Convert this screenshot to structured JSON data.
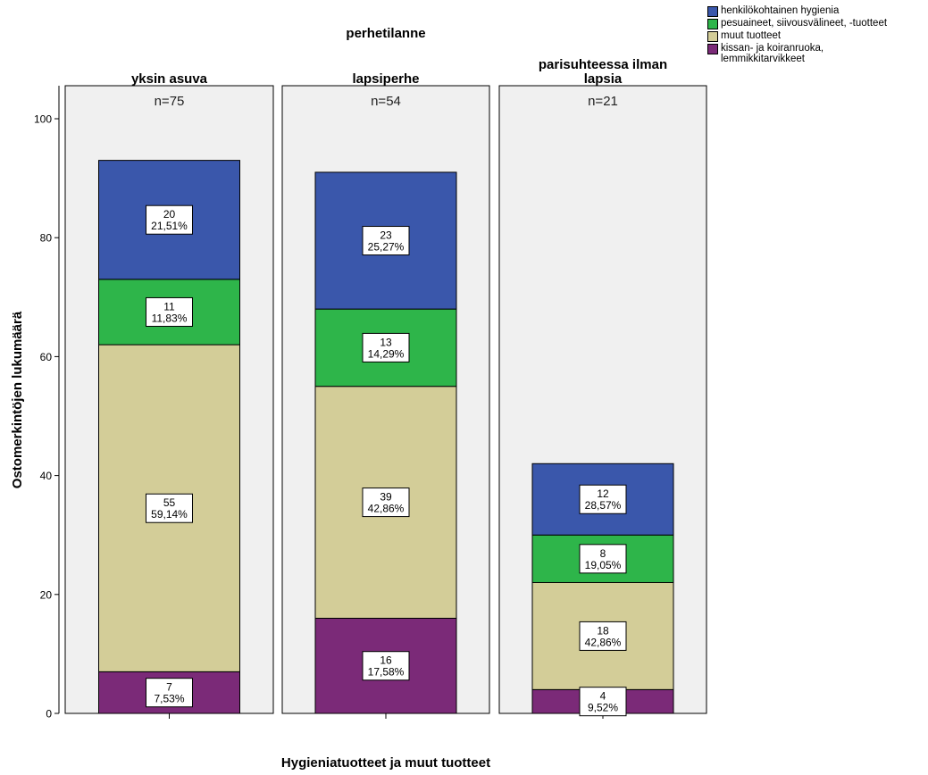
{
  "chart_data": {
    "type": "bar",
    "stacked": true,
    "title": "perhetilanne",
    "xlabel": "Hygieniatuotteet ja muut tuotteet",
    "ylabel": "Ostomerkintöjen lukumäärä",
    "ylim": [
      0,
      100
    ],
    "yticks": [
      0,
      20,
      40,
      60,
      80,
      100
    ],
    "panels": [
      {
        "title": "yksin asuva",
        "n_label": "n=75"
      },
      {
        "title": "lapsiperhe",
        "n_label": "n=54"
      },
      {
        "title": "parisuhteessa ilman\nlapsia",
        "n_label": "n=21"
      }
    ],
    "categories": [
      "yksin asuva",
      "lapsiperhe",
      "parisuhteessa ilman lapsia"
    ],
    "series": [
      {
        "name": "kissan- ja koiranruoka,\nlemmikkitarvikkeet",
        "color": "#7b2a78",
        "values": [
          7,
          16,
          4
        ],
        "percent_labels": [
          "7,53%",
          "17,58%",
          "9,52%"
        ]
      },
      {
        "name": "muut tuotteet",
        "color": "#d3cd98",
        "values": [
          55,
          39,
          18
        ],
        "percent_labels": [
          "59,14%",
          "42,86%",
          "42,86%"
        ]
      },
      {
        "name": "pesuaineet, siivousvälineet, -tuotteet",
        "color": "#2eb54a",
        "values": [
          11,
          13,
          8
        ],
        "percent_labels": [
          "11,83%",
          "14,29%",
          "19,05%"
        ]
      },
      {
        "name": "henkilökohtainen hygienia",
        "color": "#3a57ab",
        "values": [
          20,
          23,
          12
        ],
        "percent_labels": [
          "21,51%",
          "25,27%",
          "28,57%"
        ]
      }
    ],
    "legend": {
      "placement": "top-right",
      "order": [
        "henkilökohtainen hygienia",
        "pesuaineet, siivousvälineet, -tuotteet",
        "muut tuotteet",
        "kissan- ja koiranruoka,\nlemmikkitarvikkeet"
      ]
    },
    "grid": false
  }
}
